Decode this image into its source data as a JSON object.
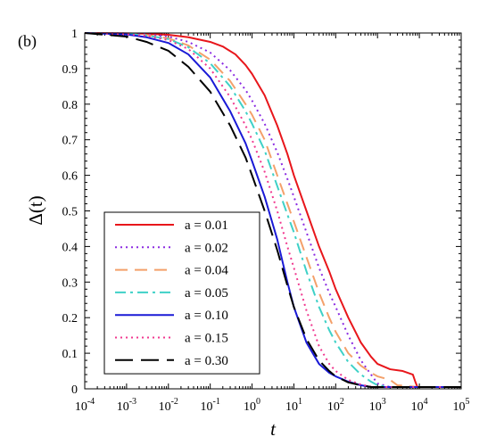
{
  "panel_label": "(b)",
  "chart_data": {
    "type": "line",
    "xlabel": "t",
    "ylabel": "Δ(t)",
    "xscale": "log",
    "xlim": [
      0.0001,
      100000
    ],
    "ylim": [
      0,
      1
    ],
    "x_tick_labels": [
      {
        "base": "10",
        "exp": "-4"
      },
      {
        "base": "10",
        "exp": "-3"
      },
      {
        "base": "10",
        "exp": "-2"
      },
      {
        "base": "10",
        "exp": "-1"
      },
      {
        "base": "10",
        "exp": "0"
      },
      {
        "base": "10",
        "exp": "1"
      },
      {
        "base": "10",
        "exp": "2"
      },
      {
        "base": "10",
        "exp": "3"
      },
      {
        "base": "10",
        "exp": "4"
      },
      {
        "base": "10",
        "exp": "5"
      }
    ],
    "y_tick_labels": [
      "0",
      "0.1",
      "0.2",
      "0.3",
      "0.4",
      "0.5",
      "0.6",
      "0.7",
      "0.8",
      "0.9",
      "1"
    ],
    "grid": false,
    "legend_position": "bottom-left",
    "series": [
      {
        "name": "a = 0.01",
        "color": "#e8161b",
        "dash": "solid",
        "x": [
          0.0001,
          0.001,
          0.003,
          0.01,
          0.03,
          0.1,
          0.2,
          0.4,
          0.7,
          1,
          2,
          4,
          7,
          10,
          20,
          40,
          70,
          100,
          200,
          400,
          700,
          1000,
          2000,
          4000,
          7000,
          8000,
          9000,
          10000,
          100000
        ],
        "y": [
          1,
          0.999,
          0.998,
          0.995,
          0.988,
          0.975,
          0.962,
          0.94,
          0.91,
          0.885,
          0.825,
          0.74,
          0.66,
          0.6,
          0.5,
          0.4,
          0.33,
          0.28,
          0.2,
          0.13,
          0.09,
          0.07,
          0.055,
          0.05,
          0.04,
          0.02,
          0.005,
          0.005,
          0.005
        ]
      },
      {
        "name": "a = 0.02",
        "color": "#8b2be2",
        "dash": "dot",
        "x": [
          0.0001,
          0.001,
          0.003,
          0.01,
          0.03,
          0.1,
          0.3,
          0.7,
          1,
          2,
          4,
          7,
          10,
          20,
          40,
          70,
          100,
          200,
          400,
          700,
          1000,
          2000,
          4000,
          7000,
          10000,
          100000
        ],
        "y": [
          1,
          0.999,
          0.996,
          0.99,
          0.975,
          0.945,
          0.895,
          0.84,
          0.81,
          0.745,
          0.665,
          0.59,
          0.54,
          0.44,
          0.34,
          0.27,
          0.23,
          0.15,
          0.08,
          0.04,
          0.015,
          0.005,
          0.005,
          0.005,
          0.005,
          0.005
        ]
      },
      {
        "name": "a = 0.04",
        "color": "#f4a06a",
        "dash": "dash",
        "x": [
          0.0001,
          0.001,
          0.003,
          0.01,
          0.03,
          0.1,
          0.3,
          0.7,
          1,
          2,
          4,
          7,
          10,
          20,
          40,
          70,
          100,
          200,
          400,
          700,
          1000,
          2000,
          3000,
          10000,
          100000
        ],
        "y": [
          1,
          0.998,
          0.994,
          0.985,
          0.965,
          0.925,
          0.865,
          0.8,
          0.77,
          0.7,
          0.6,
          0.52,
          0.47,
          0.37,
          0.27,
          0.2,
          0.16,
          0.1,
          0.065,
          0.045,
          0.035,
          0.025,
          0.01,
          0.005,
          0.005
        ]
      },
      {
        "name": "a = 0.05",
        "color": "#3ed1c7",
        "dash": "dashdot",
        "x": [
          0.0001,
          0.001,
          0.003,
          0.01,
          0.03,
          0.1,
          0.3,
          0.7,
          1,
          2,
          4,
          7,
          10,
          20,
          40,
          70,
          100,
          200,
          400,
          700,
          1000,
          2000,
          10000,
          100000
        ],
        "y": [
          1,
          0.998,
          0.993,
          0.983,
          0.96,
          0.915,
          0.85,
          0.78,
          0.745,
          0.67,
          0.57,
          0.49,
          0.44,
          0.33,
          0.23,
          0.165,
          0.13,
          0.075,
          0.04,
          0.02,
          0.01,
          0.005,
          0.005,
          0.005
        ]
      },
      {
        "name": "a = 0.10",
        "color": "#1a1ad6",
        "dash": "solid",
        "x": [
          0.0001,
          0.001,
          0.003,
          0.01,
          0.03,
          0.1,
          0.3,
          0.7,
          1,
          2,
          4,
          7,
          10,
          20,
          40,
          70,
          100,
          200,
          400,
          700,
          1000,
          10000,
          100000
        ],
        "y": [
          1,
          0.996,
          0.988,
          0.972,
          0.94,
          0.875,
          0.78,
          0.69,
          0.64,
          0.54,
          0.42,
          0.3,
          0.23,
          0.13,
          0.07,
          0.045,
          0.035,
          0.02,
          0.01,
          0.005,
          0.005,
          0.005,
          0.005
        ]
      },
      {
        "name": "a = 0.15",
        "color": "#f0388f",
        "dash": "dot",
        "x": [
          0.0001,
          0.001,
          0.003,
          0.01,
          0.03,
          0.1,
          0.3,
          0.7,
          1,
          2,
          4,
          7,
          10,
          20,
          40,
          70,
          100,
          200,
          400,
          700,
          1000,
          10000,
          100000
        ],
        "y": [
          1,
          0.997,
          0.992,
          0.98,
          0.955,
          0.9,
          0.82,
          0.74,
          0.7,
          0.61,
          0.5,
          0.4,
          0.34,
          0.22,
          0.12,
          0.07,
          0.05,
          0.025,
          0.012,
          0.006,
          0.005,
          0.005,
          0.005
        ]
      },
      {
        "name": "a = 0.30",
        "color": "#000000",
        "dash": "longdash",
        "x": [
          0.0001,
          0.001,
          0.003,
          0.01,
          0.03,
          0.1,
          0.3,
          0.7,
          1,
          2,
          4,
          7,
          10,
          20,
          40,
          70,
          100,
          200,
          400,
          700,
          1000,
          10000,
          100000
        ],
        "y": [
          1,
          0.99,
          0.975,
          0.95,
          0.905,
          0.835,
          0.74,
          0.65,
          0.6,
          0.5,
          0.39,
          0.29,
          0.23,
          0.14,
          0.08,
          0.05,
          0.035,
          0.018,
          0.01,
          0.005,
          0.005,
          0.005,
          0.005
        ]
      }
    ]
  }
}
